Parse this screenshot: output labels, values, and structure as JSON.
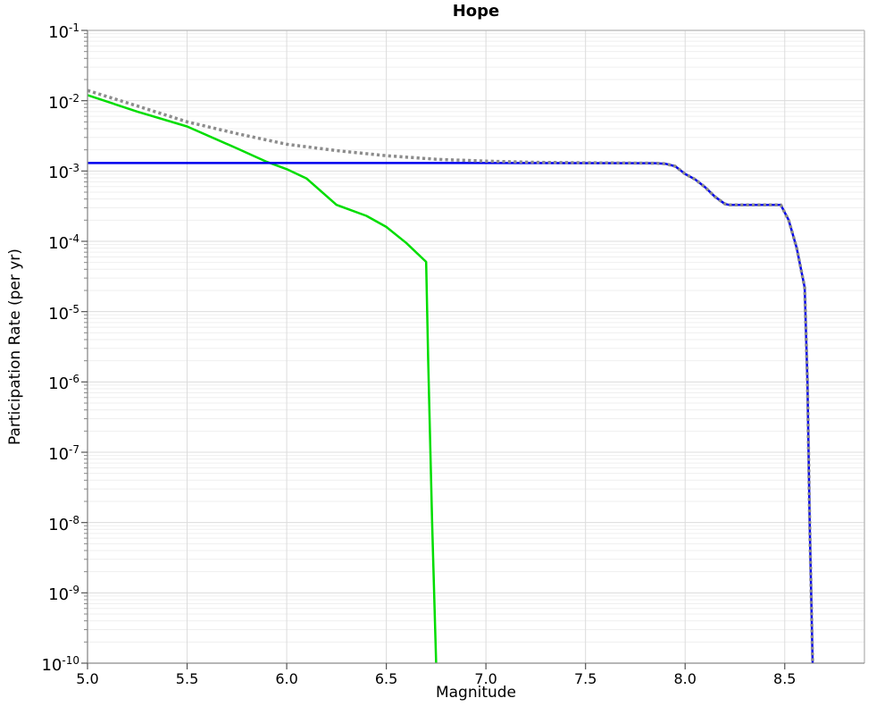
{
  "title": "Hope",
  "chart_data": {
    "type": "line",
    "title": "Hope",
    "xlabel": "Magnitude",
    "ylabel": "Participation Rate (per yr)",
    "xlim": [
      5.0,
      8.9
    ],
    "ylim": [
      1e-10,
      0.1
    ],
    "x_ticks": [
      5.0,
      5.5,
      6.0,
      6.5,
      7.0,
      7.5,
      8.0,
      8.5
    ],
    "y_tick_exponents": [
      -1,
      -2,
      -3,
      -4,
      -5,
      -6,
      -7,
      -8,
      -9,
      -10
    ],
    "grid": "major and log-minor gridlines on, light gray",
    "legend": "none",
    "colors": {
      "blue_series": "#0000ee",
      "gray_dotted_series": "#8c8c8c",
      "green_series": "#00dd00",
      "major_grid": "#dcdcdc",
      "minor_grid": "#efefef",
      "spine": "#8a8a8a"
    },
    "series": [
      {
        "name": "green-characteristic-curve",
        "color": "#00dd00",
        "style": "solid",
        "stroke_width": 2.5,
        "points": [
          [
            5.0,
            0.012
          ],
          [
            5.25,
            0.007
          ],
          [
            5.5,
            0.0043
          ],
          [
            5.75,
            0.0021
          ],
          [
            5.9,
            0.00135
          ],
          [
            6.0,
            0.00106
          ],
          [
            6.1,
            0.00078
          ],
          [
            6.25,
            0.00033
          ],
          [
            6.4,
            0.00023
          ],
          [
            6.5,
            0.00016
          ],
          [
            6.6,
            9.5e-05
          ],
          [
            6.7,
            5.1e-05
          ],
          [
            6.71,
            2e-06
          ],
          [
            6.73,
            1e-08
          ],
          [
            6.75,
            1e-10
          ]
        ]
      },
      {
        "name": "blue-total-rate-curve",
        "color": "#0000ee",
        "style": "solid",
        "stroke_width": 2.5,
        "points": [
          [
            5.0,
            0.0013
          ],
          [
            7.0,
            0.0013
          ],
          [
            7.85,
            0.00129
          ],
          [
            7.9,
            0.00127
          ],
          [
            7.95,
            0.00117
          ],
          [
            8.0,
            0.00091
          ],
          [
            8.05,
            0.00076
          ],
          [
            8.1,
            0.00059
          ],
          [
            8.15,
            0.00043
          ],
          [
            8.2,
            0.00034
          ],
          [
            8.22,
            0.00033
          ],
          [
            8.48,
            0.00033
          ],
          [
            8.52,
            0.0002
          ],
          [
            8.56,
            8e-05
          ],
          [
            8.6,
            2.2e-05
          ],
          [
            8.614,
            1e-06
          ],
          [
            8.625,
            1e-08
          ],
          [
            8.64,
            1e-10
          ]
        ]
      },
      {
        "name": "gray-dotted-reference-curve",
        "color": "#8c8c8c",
        "style": "dotted",
        "stroke_width": 3.5,
        "points": [
          [
            5.0,
            0.014
          ],
          [
            5.25,
            0.0084
          ],
          [
            5.5,
            0.005
          ],
          [
            5.75,
            0.0034
          ],
          [
            6.0,
            0.0024
          ],
          [
            6.25,
            0.00195
          ],
          [
            6.5,
            0.00165
          ],
          [
            6.75,
            0.00147
          ],
          [
            7.0,
            0.00138
          ],
          [
            7.25,
            0.00133
          ],
          [
            7.5,
            0.00131
          ],
          [
            7.85,
            0.00129
          ],
          [
            7.9,
            0.00127
          ],
          [
            7.95,
            0.00117
          ],
          [
            8.0,
            0.00091
          ],
          [
            8.05,
            0.00076
          ],
          [
            8.1,
            0.00059
          ],
          [
            8.15,
            0.00043
          ],
          [
            8.2,
            0.00034
          ],
          [
            8.22,
            0.00033
          ],
          [
            8.48,
            0.00033
          ],
          [
            8.52,
            0.0002
          ],
          [
            8.56,
            8e-05
          ],
          [
            8.6,
            2.2e-05
          ],
          [
            8.614,
            1e-06
          ],
          [
            8.625,
            1e-08
          ],
          [
            8.64,
            1e-10
          ]
        ]
      }
    ]
  }
}
